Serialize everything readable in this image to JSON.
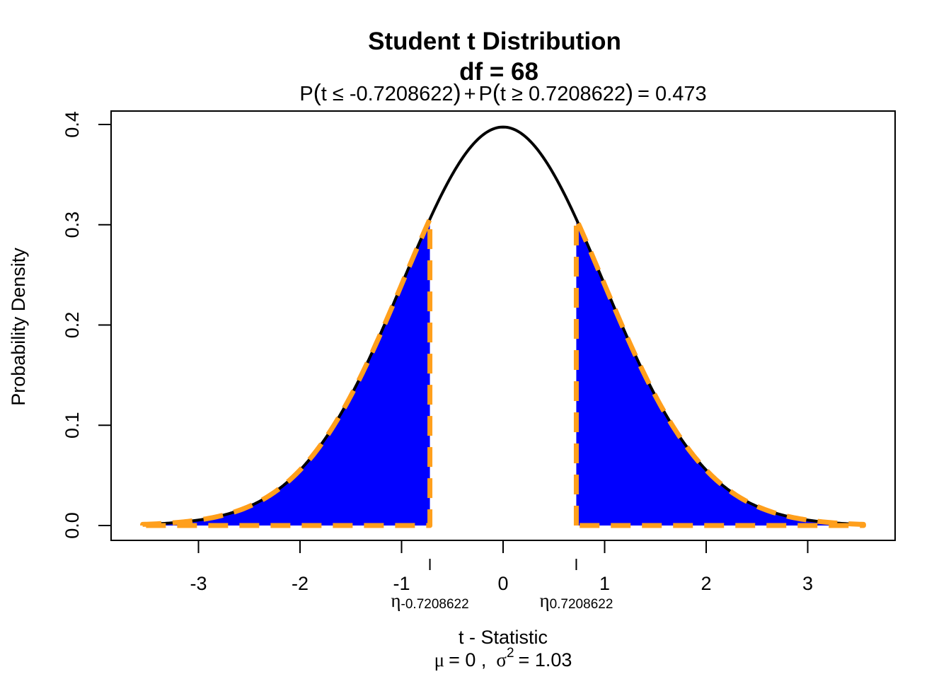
{
  "chart_data": {
    "type": "area",
    "title_line1": "Student t Distribution",
    "title_line2": "df  =  68",
    "df": 68,
    "subtitle": {
      "p1": "P",
      "lower_expr": "t ≤ -0.7208622",
      "plus": "+",
      "p2": "P",
      "upper_expr": "t ≥ 0.7208622",
      "equals": "= 0.473"
    },
    "xlabel": "t - Statistic",
    "xlabel2": {
      "mu": "μ",
      "mu_eq": "= 0 ,",
      "sigma": "σ",
      "sup": "2",
      "sigma_eq": "= 1.03"
    },
    "ylabel": "Probability Density",
    "xlim": [
      -3.55,
      3.55
    ],
    "ylim": [
      0,
      0.4
    ],
    "x_ticks": [
      -3,
      -2,
      -1,
      0,
      1,
      2,
      3
    ],
    "x_tick_labels": [
      "-3",
      "-2",
      "-1",
      "0",
      "1",
      "2",
      "3"
    ],
    "y_ticks": [
      0.0,
      0.1,
      0.2,
      0.3,
      0.4
    ],
    "y_tick_labels": [
      "0.0",
      "0.1",
      "0.2",
      "0.3",
      "0.4"
    ],
    "critical_values": [
      -0.7208622,
      0.7208622
    ],
    "critical_labels": [
      {
        "eta": "η",
        "sub": "-0.7208622"
      },
      {
        "eta": "η",
        "sub": "0.7208622"
      }
    ],
    "shaded_tails": "both",
    "tail_probability": 0.473,
    "colors": {
      "curve": "#000000",
      "fill": "#0000ff",
      "outline": "#ff9f1c"
    },
    "grid": false,
    "legend": "none"
  }
}
